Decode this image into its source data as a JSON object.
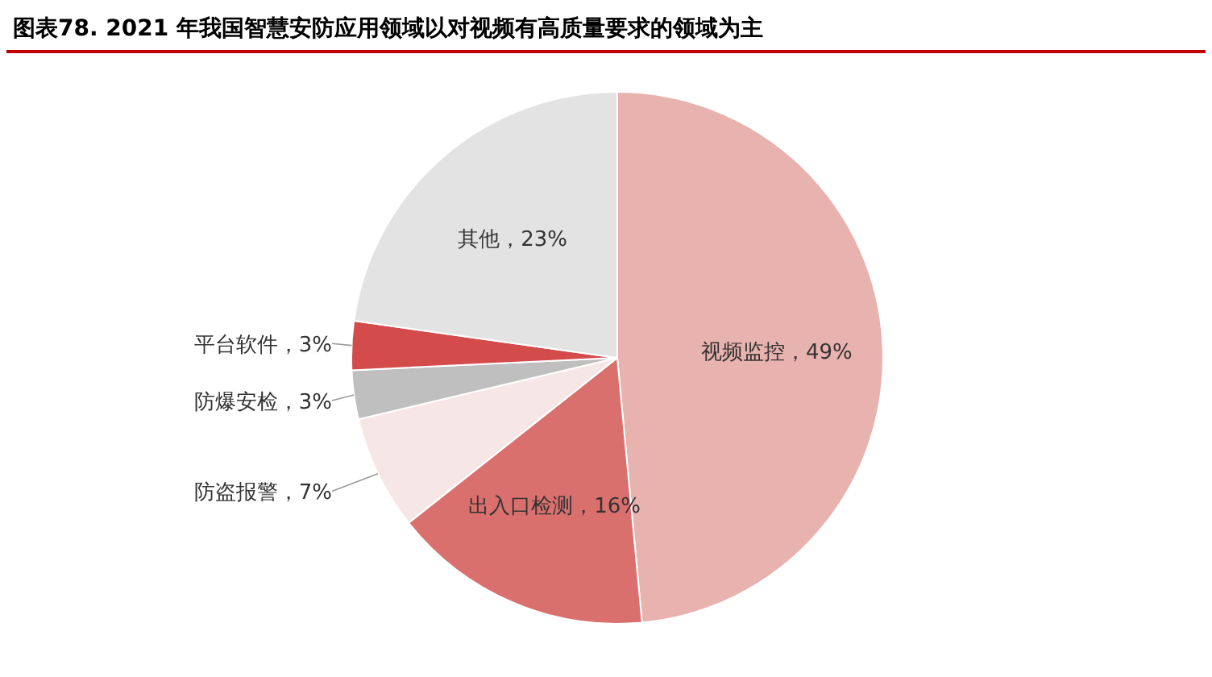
{
  "chart_data": {
    "type": "pie",
    "title": "图表78. 2021 年我国智慧安防应用领域以对视频有高质量要求的领域为主",
    "categories": [
      "视频监控",
      "出入口检测",
      "防盗报警",
      "防爆安检",
      "平台软件",
      "其他"
    ],
    "values": [
      49,
      16,
      7,
      3,
      3,
      23
    ],
    "value_labels": [
      "，49%",
      "，16%",
      "，7%",
      "，3%",
      "，3%",
      "，23%"
    ],
    "colors": [
      "#e8b2ae",
      "#d9706e",
      "#f7e6e6",
      "#bfbfbf",
      "#d44b4b",
      "#e3e3e3"
    ]
  }
}
